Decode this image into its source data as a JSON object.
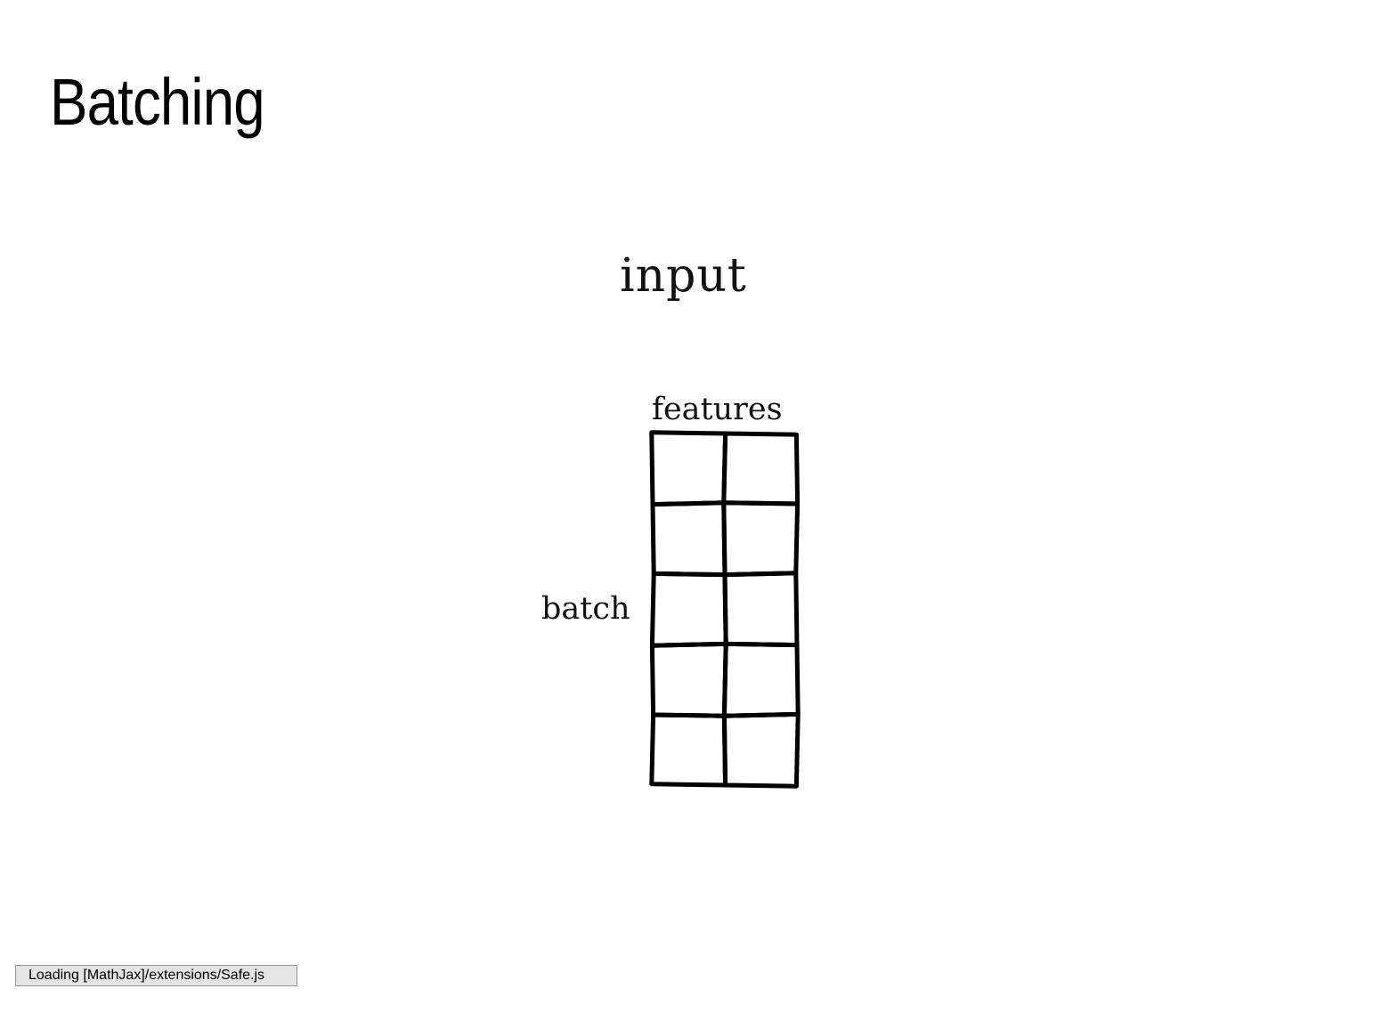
{
  "slide": {
    "title": "Batching"
  },
  "figure": {
    "label_input": "input",
    "label_features": "features",
    "label_batch": "batch",
    "grid": {
      "rows": 5,
      "columns": 2
    }
  },
  "status": {
    "message": "Loading [MathJax]/extensions/Safe.js"
  }
}
